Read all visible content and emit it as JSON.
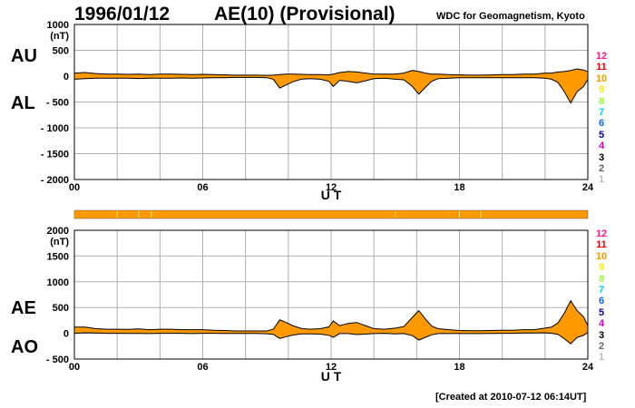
{
  "header": {
    "date": "1996/01/12",
    "index_title": "AE(10) (Provisional)",
    "source": "WDC for Geomagnetism, Kyoto"
  },
  "footer": {
    "created": "[Created at 2010-07-12 06:14UT]"
  },
  "panel_labels": {
    "top_upper": "AU",
    "top_lower": "AL",
    "bottom_upper": "AE",
    "bottom_lower": "AO"
  },
  "legend": {
    "items": [
      {
        "label": "12",
        "color": "#ff1a8c"
      },
      {
        "label": "11",
        "color": "#e60000"
      },
      {
        "label": "10",
        "color": "#ff9900"
      },
      {
        "label": "9",
        "color": "#ffee00"
      },
      {
        "label": "8",
        "color": "#99ff33"
      },
      {
        "label": "7",
        "color": "#00ccff"
      },
      {
        "label": "6",
        "color": "#0066ff"
      },
      {
        "label": "5",
        "color": "#0000aa"
      },
      {
        "label": "4",
        "color": "#cc00cc"
      },
      {
        "label": "3",
        "color": "#000000"
      },
      {
        "label": "2",
        "color": "#666666"
      },
      {
        "label": "1",
        "color": "#bbbbbb"
      }
    ]
  },
  "status_bar": {
    "color": "#ff9900",
    "station_count_indicator": "10"
  },
  "colors": {
    "fill": "#ff9900",
    "line": "#000000",
    "grid": "#b0b0b0"
  },
  "chart_data": [
    {
      "type": "area",
      "name": "AU-AL",
      "xlabel": "U T",
      "ylabel": "(nT)",
      "xlim": [
        0,
        24
      ],
      "ylim": [
        -2000,
        1000
      ],
      "xticks": [
        "00",
        "06",
        "12",
        "18",
        "24"
      ],
      "yticks": [
        "1000",
        "500",
        "0",
        "- 500",
        "- 1000",
        "- 1500",
        "- 2000"
      ],
      "grid": true,
      "x": [
        0,
        0.5,
        1,
        1.5,
        2,
        2.5,
        3,
        3.5,
        4,
        4.5,
        5,
        5.5,
        6,
        6.5,
        7,
        7.5,
        8,
        8.5,
        9,
        9.3,
        9.6,
        9.9,
        10.2,
        10.6,
        11,
        11.5,
        11.9,
        12.1,
        12.4,
        12.8,
        13.2,
        13.6,
        14,
        14.5,
        15,
        15.4,
        15.8,
        16.1,
        16.4,
        16.7,
        17,
        17.5,
        18,
        18.5,
        19,
        19.5,
        20,
        20.5,
        21,
        21.5,
        22,
        22.3,
        22.6,
        22.9,
        23.2,
        23.5,
        23.8,
        24
      ],
      "series": [
        {
          "name": "AU",
          "values": [
            60,
            70,
            50,
            40,
            40,
            35,
            40,
            30,
            40,
            40,
            35,
            30,
            35,
            30,
            25,
            20,
            20,
            20,
            15,
            20,
            30,
            40,
            40,
            35,
            30,
            30,
            25,
            40,
            70,
            90,
            80,
            60,
            40,
            40,
            40,
            60,
            110,
            90,
            60,
            40,
            40,
            30,
            25,
            20,
            20,
            25,
            30,
            30,
            40,
            40,
            60,
            60,
            80,
            90,
            110,
            140,
            120,
            90
          ]
        },
        {
          "name": "AL",
          "values": [
            -60,
            -50,
            -40,
            -40,
            -40,
            -40,
            -45,
            -40,
            -40,
            -40,
            -35,
            -40,
            -35,
            -30,
            -30,
            -25,
            -25,
            -25,
            -30,
            -60,
            -230,
            -170,
            -110,
            -60,
            -50,
            -60,
            -100,
            -200,
            -80,
            -100,
            -130,
            -90,
            -50,
            -40,
            -60,
            -70,
            -200,
            -350,
            -220,
            -100,
            -50,
            -40,
            -30,
            -30,
            -30,
            -30,
            -30,
            -30,
            -30,
            -30,
            -40,
            -60,
            -120,
            -300,
            -520,
            -300,
            -200,
            -60
          ]
        }
      ]
    },
    {
      "type": "area",
      "name": "AE-AO",
      "xlabel": "U T",
      "ylabel": "(nT)",
      "xlim": [
        0,
        24
      ],
      "ylim": [
        -500,
        2000
      ],
      "xticks": [
        "00",
        "06",
        "12",
        "18",
        "24"
      ],
      "yticks": [
        "2000",
        "1500",
        "1000",
        "500",
        "0",
        "- 500"
      ],
      "grid": true,
      "x": [
        0,
        0.5,
        1,
        1.5,
        2,
        2.5,
        3,
        3.5,
        4,
        4.5,
        5,
        5.5,
        6,
        6.5,
        7,
        7.5,
        8,
        8.5,
        9,
        9.3,
        9.6,
        9.9,
        10.2,
        10.6,
        11,
        11.5,
        11.9,
        12.1,
        12.4,
        12.8,
        13.2,
        13.6,
        14,
        14.5,
        15,
        15.4,
        15.8,
        16.1,
        16.4,
        16.7,
        17,
        17.5,
        18,
        18.5,
        19,
        19.5,
        20,
        20.5,
        21,
        21.5,
        22,
        22.3,
        22.6,
        22.9,
        23.2,
        23.5,
        23.8,
        24
      ],
      "series": [
        {
          "name": "AE",
          "values": [
            120,
            120,
            90,
            80,
            80,
            75,
            85,
            70,
            80,
            80,
            70,
            70,
            70,
            60,
            55,
            45,
            45,
            45,
            45,
            80,
            260,
            210,
            150,
            95,
            80,
            90,
            125,
            240,
            150,
            190,
            210,
            150,
            90,
            80,
            100,
            130,
            310,
            440,
            280,
            140,
            90,
            70,
            55,
            50,
            50,
            55,
            60,
            60,
            70,
            70,
            100,
            120,
            200,
            390,
            630,
            440,
            320,
            150
          ]
        },
        {
          "name": "AO",
          "values": [
            0,
            10,
            5,
            0,
            0,
            -3,
            -3,
            -5,
            0,
            0,
            0,
            -5,
            0,
            0,
            -3,
            -3,
            -3,
            -3,
            -8,
            -20,
            -100,
            -65,
            -35,
            -13,
            -10,
            -15,
            -38,
            -80,
            -5,
            -5,
            -25,
            -15,
            -5,
            0,
            -10,
            -5,
            -45,
            -130,
            -80,
            -30,
            -5,
            -5,
            -3,
            -5,
            -5,
            -3,
            0,
            0,
            5,
            5,
            10,
            0,
            -20,
            -105,
            -205,
            -80,
            -40,
            15
          ]
        }
      ]
    }
  ]
}
